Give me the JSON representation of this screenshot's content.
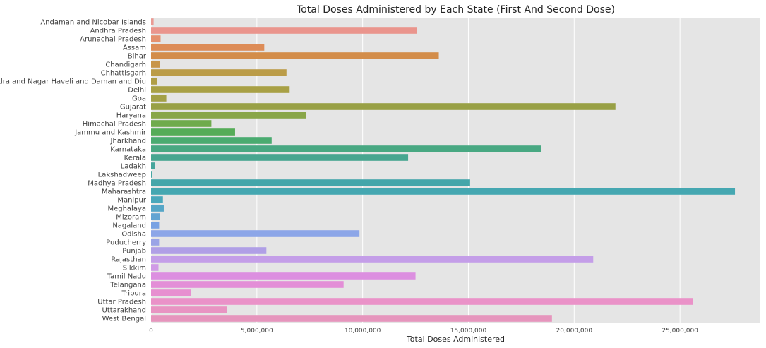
{
  "chart_data": {
    "type": "bar",
    "orientation": "horizontal",
    "title": "Total Doses Administered by Each State (First And Second Dose)",
    "xlabel": "Total Doses Administered",
    "ylabel": "",
    "xlim": [
      0,
      28800000
    ],
    "xticks": [
      0,
      5000000,
      10000000,
      15000000,
      20000000,
      25000000
    ],
    "xtick_labels": [
      "0",
      "5,000,000",
      "10,000,000",
      "15,000,000",
      "20,000,000",
      "25,000,000"
    ],
    "grid": true,
    "background": "#e5e5e5",
    "categories": [
      "Andaman and Nicobar Islands",
      "Andhra Pradesh",
      "Arunachal Pradesh",
      "Assam",
      "Bihar",
      "Chandigarh",
      "Chhattisgarh",
      "Dadra and Nagar Haveli and Daman and Diu",
      "Delhi",
      "Goa",
      "Gujarat",
      "Haryana",
      "Himachal Pradesh",
      "Jammu and Kashmir",
      "Jharkhand",
      "Karnataka",
      "Kerala",
      "Ladakh",
      "Lakshadweep",
      "Madhya Pradesh",
      "Maharashtra",
      "Manipur",
      "Meghalaya",
      "Mizoram",
      "Nagaland",
      "Odisha",
      "Puducherry",
      "Punjab",
      "Rajasthan",
      "Sikkim",
      "Tamil Nadu",
      "Telangana",
      "Tripura",
      "Uttar Pradesh",
      "Uttarakhand",
      "West Bengal"
    ],
    "values": [
      120000,
      12550000,
      450000,
      5350000,
      13600000,
      420000,
      6400000,
      280000,
      6550000,
      720000,
      21950000,
      7320000,
      2850000,
      3970000,
      5700000,
      18450000,
      12150000,
      170000,
      60000,
      15080000,
      27600000,
      560000,
      600000,
      420000,
      380000,
      9850000,
      380000,
      5450000,
      20900000,
      350000,
      12500000,
      9100000,
      1900000,
      25600000,
      3580000,
      18950000
    ],
    "colors": [
      "#ea9a93",
      "#ea958d",
      "#e5906e",
      "#dd8c57",
      "#d38d4a",
      "#c8954a",
      "#bb9c48",
      "#b09e46",
      "#a8a045",
      "#a3a046",
      "#98a045",
      "#89a648",
      "#6fab4c",
      "#55ac58",
      "#4aab70",
      "#48a882",
      "#47a690",
      "#46a59c",
      "#45a6a3",
      "#44a6aa",
      "#45a7b1",
      "#4aa8bb",
      "#55a6c7",
      "#63a4d2",
      "#79a2e3",
      "#8ca6e8",
      "#9aa4e6",
      "#b09fe6",
      "#c49ee8",
      "#d09ae6",
      "#dc8fe0",
      "#e38ed7",
      "#e78fd0",
      "#ea92c8",
      "#e894c2",
      "#e695bd"
    ]
  }
}
